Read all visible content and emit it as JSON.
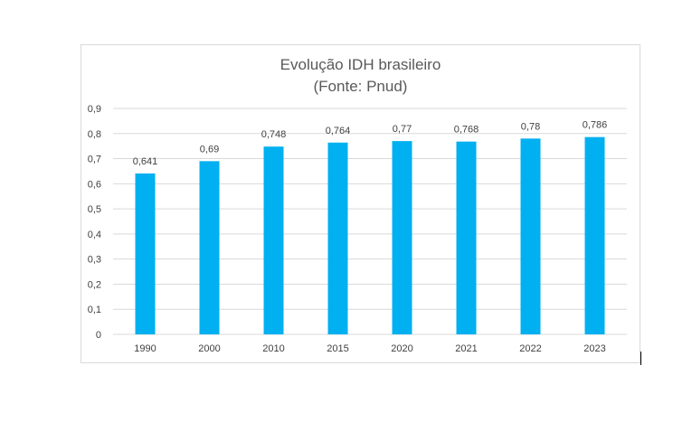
{
  "chart_data": {
    "type": "bar",
    "title": "Evolução IDH brasileiro",
    "subtitle": "(Fonte: Pnud)",
    "categories": [
      "1990",
      "2000",
      "2010",
      "2015",
      "2020",
      "2021",
      "2022",
      "2023"
    ],
    "values": [
      0.641,
      0.69,
      0.748,
      0.764,
      0.77,
      0.768,
      0.78,
      0.786
    ],
    "data_labels": [
      "0,641",
      "0,69",
      "0,748",
      "0,764",
      "0,77",
      "0,768",
      "0,78",
      "0,786"
    ],
    "y_ticks": [
      0,
      0.1,
      0.2,
      0.3,
      0.4,
      0.5,
      0.6,
      0.7,
      0.8,
      0.9
    ],
    "y_tick_labels": [
      "0",
      "0,1",
      "0,2",
      "0,3",
      "0,4",
      "0,5",
      "0,6",
      "0,7",
      "0,8",
      "0,9"
    ],
    "ylim": [
      0,
      0.9
    ],
    "xlabel": "",
    "ylabel": "",
    "grid": true,
    "legend": "none",
    "bar_color": "#00b0f0",
    "grid_color": "#d9d9d9",
    "text_color": "#404040",
    "title_color": "#595959"
  }
}
